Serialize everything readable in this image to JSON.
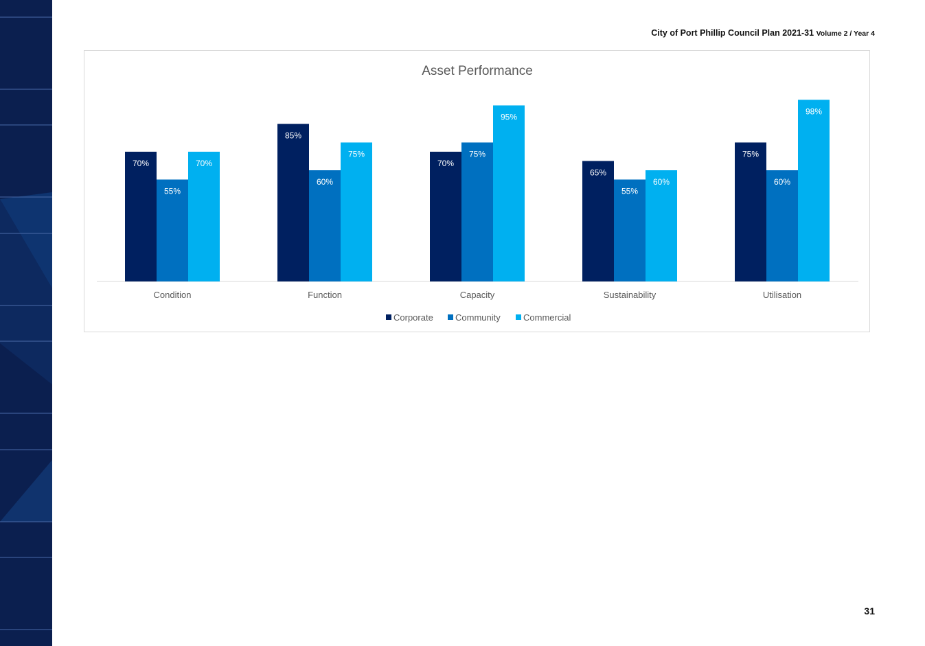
{
  "header": {
    "main": "City of Port Phillip Council Plan 2021-31",
    "sub": "Volume 2 / Year 4"
  },
  "page_number": "31",
  "colors": {
    "sidebar": "#0b1f4f",
    "corporate": "#002060",
    "community": "#0070c0",
    "commercial": "#00b0f0"
  },
  "chart_data": {
    "type": "bar",
    "title": "Asset Performance",
    "categories": [
      "Condition",
      "Function",
      "Capacity",
      "Sustainability",
      "Utilisation"
    ],
    "series": [
      {
        "name": "Corporate",
        "values": [
          70,
          85,
          70,
          65,
          75
        ],
        "labels": [
          "70%",
          "85%",
          "70%",
          "65%",
          "75%"
        ],
        "color": "#002060"
      },
      {
        "name": "Community",
        "values": [
          55,
          60,
          75,
          55,
          60
        ],
        "labels": [
          "55%",
          "60%",
          "75%",
          "55%",
          "60%"
        ],
        "color": "#0070c0"
      },
      {
        "name": "Commercial",
        "values": [
          70,
          75,
          95,
          60,
          98
        ],
        "labels": [
          "70%",
          "75%",
          "95%",
          "60%",
          "98%"
        ],
        "color": "#00b0f0"
      }
    ],
    "ylim": [
      0,
      100
    ],
    "xlabel": "",
    "ylabel": "",
    "grid": false,
    "legend_position": "bottom"
  }
}
